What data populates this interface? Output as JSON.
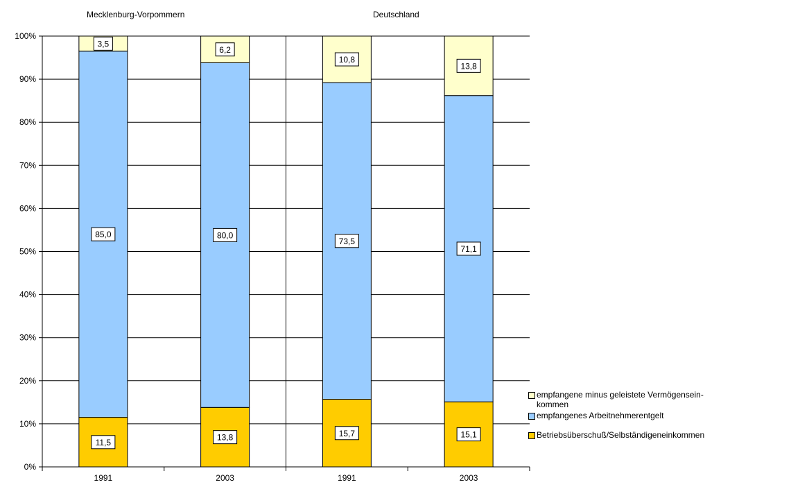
{
  "colors": {
    "betrieb": "#FFCC00",
    "arbeit": "#99CCFF",
    "vermoegen": "#FFFFCC"
  },
  "chart_data": {
    "type": "bar",
    "stacked": "percent",
    "groups": [
      "Mecklenburg-Vorpommern",
      "Deutschland"
    ],
    "categories": [
      "1991",
      "2003",
      "1991",
      "2003"
    ],
    "category_groups": [
      0,
      0,
      1,
      1
    ],
    "series": [
      {
        "name": "Betriebsüberschuß/Selbständigeneinkommen",
        "values": [
          11.5,
          13.8,
          15.7,
          15.1
        ],
        "color": "#FFCC00"
      },
      {
        "name": "empfangenes Arbeitnehmerentgelt",
        "values": [
          85.0,
          80.0,
          73.5,
          71.1
        ],
        "color": "#99CCFF"
      },
      {
        "name": "empfangene minus geleistete Vermögensein-\nkommen",
        "values": [
          3.5,
          6.2,
          10.8,
          13.8
        ],
        "color": "#FFFFCC"
      }
    ],
    "data_labels": [
      [
        "11,5",
        "13,8",
        "15,7",
        "15,1"
      ],
      [
        "85,0",
        "80,0",
        "73,5",
        "71,1"
      ],
      [
        "3,5",
        "6,2",
        "10,8",
        "13,8"
      ]
    ],
    "yticks": [
      "0%",
      "10%",
      "20%",
      "30%",
      "40%",
      "50%",
      "60%",
      "70%",
      "80%",
      "90%",
      "100%"
    ],
    "ylim": [
      0,
      100
    ],
    "grid": true,
    "legend_position": "right",
    "legend_order": [
      2,
      1,
      0
    ]
  }
}
